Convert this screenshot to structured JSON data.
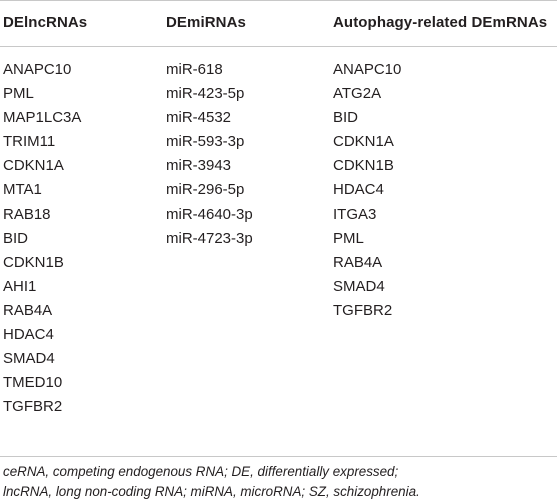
{
  "table": {
    "headers": [
      "DElncRNAs",
      "DEmiRNAs",
      "Autophagy-related DEmRNAs"
    ],
    "columns": [
      [
        "ANAPC10",
        "PML",
        "MAP1LC3A",
        "TRIM11",
        "CDKN1A",
        "MTA1",
        "RAB18",
        "BID",
        "CDKN1B",
        "AHI1",
        "RAB4A",
        "HDAC4",
        "SMAD4",
        "TMED10",
        "TGFBR2"
      ],
      [
        "miR-618",
        "miR-423-5p",
        "miR-4532",
        "miR-593-3p",
        "miR-3943",
        "miR-296-5p",
        "miR-4640-3p",
        "miR-4723-3p"
      ],
      [
        "ANAPC10",
        "ATG2A",
        "BID",
        "CDKN1A",
        "CDKN1B",
        "HDAC4",
        "ITGA3",
        "PML",
        "RAB4A",
        "SMAD4",
        "TGFBR2"
      ]
    ]
  },
  "footnote": {
    "line1": "ceRNA, competing endogenous RNA; DE, differentially expressed;",
    "line2": "lncRNA, long non-coding RNA; miRNA, microRNA; SZ, schizophrenia."
  }
}
